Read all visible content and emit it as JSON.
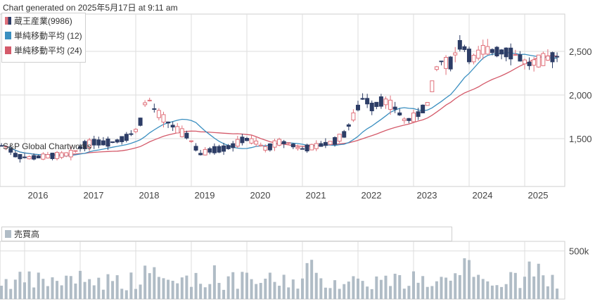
{
  "header": {
    "generated_text": "Chart generated on 2025年5月17日 at 9:11 am"
  },
  "watermark": "S&P Global Chartworks",
  "colors": {
    "up": "#e0707a",
    "down": "#2d3d66",
    "ma12": "#3a8fc0",
    "ma24": "#d45a6a",
    "volume": "#b0bcc6",
    "grid": "#dddddd"
  },
  "chart_data": [
    {
      "type": "candlestick",
      "legend_position": "top-left",
      "grid": true,
      "series": [
        {
          "name": "蔵王産業(9986)",
          "kind": "candles"
        },
        {
          "name": "単純移動平均 (12)",
          "kind": "line"
        },
        {
          "name": "単純移動平均 (24)",
          "kind": "line"
        }
      ],
      "x_ticks": [
        "2016",
        "2017",
        "2018",
        "2019",
        "2020",
        "2021",
        "2022",
        "2023",
        "2024",
        "2025"
      ],
      "y_ticks": [
        "2,500",
        "2,000",
        "1,500"
      ],
      "ylim": [
        900,
        2900
      ],
      "xlim": [
        2015.3,
        2025.4
      ],
      "close_approx": [
        [
          2015.4,
          1420
        ],
        [
          2015.6,
          1300
        ],
        [
          2015.8,
          1280
        ],
        [
          2016.0,
          1290
        ],
        [
          2016.2,
          1300
        ],
        [
          2016.4,
          1310
        ],
        [
          2016.6,
          1330
        ],
        [
          2016.8,
          1420
        ],
        [
          2017.0,
          1460
        ],
        [
          2017.2,
          1450
        ],
        [
          2017.4,
          1470
        ],
        [
          2017.6,
          1520
        ],
        [
          2017.8,
          1620
        ],
        [
          2017.95,
          1990
        ],
        [
          2018.1,
          1820
        ],
        [
          2018.3,
          1700
        ],
        [
          2018.5,
          1600
        ],
        [
          2018.7,
          1520
        ],
        [
          2018.9,
          1320
        ],
        [
          2019.1,
          1370
        ],
        [
          2019.3,
          1380
        ],
        [
          2019.5,
          1420
        ],
        [
          2019.7,
          1500
        ],
        [
          2019.9,
          1460
        ],
        [
          2020.1,
          1380
        ],
        [
          2020.3,
          1460
        ],
        [
          2020.5,
          1450
        ],
        [
          2020.7,
          1380
        ],
        [
          2020.9,
          1400
        ],
        [
          2021.1,
          1430
        ],
        [
          2021.3,
          1460
        ],
        [
          2021.5,
          1550
        ],
        [
          2021.7,
          1800
        ],
        [
          2021.85,
          1980
        ],
        [
          2022.0,
          1860
        ],
        [
          2022.2,
          1940
        ],
        [
          2022.4,
          1860
        ],
        [
          2022.6,
          1700
        ],
        [
          2022.8,
          1760
        ],
        [
          2023.0,
          1900
        ],
        [
          2023.2,
          2400
        ],
        [
          2023.4,
          2350
        ],
        [
          2023.6,
          2600
        ],
        [
          2023.8,
          2400
        ],
        [
          2024.0,
          2520
        ],
        [
          2024.2,
          2500
        ],
        [
          2024.4,
          2490
        ],
        [
          2024.6,
          2460
        ],
        [
          2024.8,
          2350
        ],
        [
          2025.0,
          2390
        ],
        [
          2025.2,
          2430
        ],
        [
          2025.35,
          2440
        ]
      ]
    },
    {
      "type": "bar",
      "series": [
        {
          "name": "売買高"
        }
      ],
      "y_ticks": [
        "500k"
      ],
      "ylim": [
        0,
        600000
      ]
    }
  ]
}
